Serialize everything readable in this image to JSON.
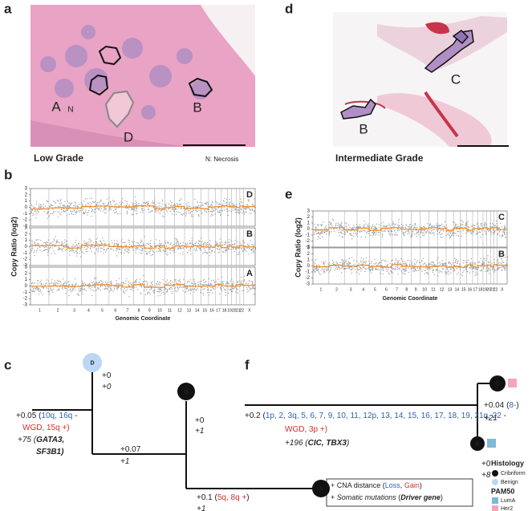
{
  "a": {
    "label": "a",
    "caption": "Low Grade",
    "note": "N: Necrosis",
    "regions": [
      "A",
      "N",
      "B",
      "D"
    ]
  },
  "d": {
    "label": "d",
    "caption": "Intermediate Grade",
    "regions": [
      "C",
      "B"
    ]
  },
  "b": {
    "label": "b",
    "samples": [
      "D",
      "B",
      "A"
    ],
    "yticks": [
      3,
      2,
      1,
      0,
      -1,
      -2,
      -3
    ],
    "ylabel": "Copy Ratio (log2)",
    "xlabel": "Genomic Coordinate",
    "chromosomes": [
      "1",
      "2",
      "3",
      "4",
      "5",
      "6",
      "7",
      "8",
      "9",
      "10",
      "11",
      "12",
      "13",
      "14",
      "15",
      "16",
      "17",
      "18",
      "19",
      "20",
      "21",
      "22",
      "X"
    ]
  },
  "e": {
    "label": "e",
    "samples": [
      "C",
      "B"
    ],
    "yticks": [
      3,
      2,
      1,
      0,
      -1,
      -2,
      -3
    ],
    "ylabel": "Copy Ratio (log2)",
    "xlabel": "Genomic Coordinate",
    "chromosomes": [
      "1",
      "2",
      "3",
      "4",
      "5",
      "6",
      "7",
      "8",
      "9",
      "10",
      "11",
      "12",
      "13",
      "14",
      "15",
      "16",
      "17",
      "18",
      "19",
      "20",
      "21",
      "22",
      "X"
    ]
  },
  "c": {
    "label": "c",
    "nodes": [
      {
        "name": "D",
        "color": "#bcd7f3",
        "text_color": "#333"
      },
      {
        "name": "B",
        "color": "#111",
        "text_color": "#fff"
      },
      {
        "name": "A",
        "color": "#111",
        "text_color": "#fff"
      }
    ],
    "annotations": [
      [
        [
          {
            "text": "+0"
          }
        ],
        [
          {
            "text": "+0",
            "style": "italic"
          }
        ]
      ],
      [
        [
          {
            "text": "+0.05 ("
          },
          {
            "text": "10q, 16q",
            "color": "#2f5fb3"
          },
          {
            "text": " -"
          }
        ],
        [
          {
            "text": "WGD, 15q +)",
            "color": "#d0312d"
          }
        ],
        [
          {
            "text": "+75 (",
            "style": "italic"
          },
          {
            "text": "GATA3,",
            "style": "italic",
            "weight": "bold"
          }
        ],
        [
          {
            "text": "SF3B1)",
            "style": "italic",
            "weight": "bold"
          }
        ]
      ],
      [
        [
          {
            "text": "+0"
          }
        ],
        [
          {
            "text": "+1",
            "style": "italic"
          }
        ]
      ],
      [
        [
          {
            "text": "+0.07"
          }
        ],
        [
          {
            "text": "+1",
            "style": "italic"
          }
        ]
      ],
      [
        [
          {
            "text": "+0.1 ("
          },
          {
            "text": "5q, 8q +",
            "color": "#d0312d"
          },
          {
            "text": ")"
          }
        ],
        [
          {
            "text": "+1",
            "style": "italic"
          }
        ]
      ]
    ]
  },
  "f": {
    "label": "f",
    "nodes": [
      {
        "name": "C",
        "color": "#111",
        "text_color": "#fff",
        "subtype_color": "#f4a6b6"
      },
      {
        "name": "B",
        "color": "#111",
        "text_color": "#fff",
        "subtype_color": "#7db9d9"
      }
    ],
    "annotations": [
      [
        [
          {
            "text": "+0.2 ("
          },
          {
            "text": "1p, 2, 3q, 5, 6, 7, 9, 10, 11, 12p, 13, 14, 15, 16, 17, 18, 19, 21q, 22",
            "color": "#2f5fb3"
          },
          {
            "text": " -"
          }
        ],
        [
          {
            "text": "WGD, 3p +)",
            "color": "#d0312d"
          }
        ],
        [
          {
            "text": "+196 (",
            "style": "italic"
          },
          {
            "text": "CIC, TBX3",
            "style": "italic",
            "weight": "bold"
          },
          {
            "text": ")",
            "style": "italic"
          }
        ]
      ],
      [
        [
          {
            "text": "+0.04 ("
          },
          {
            "text": "8-",
            "color": "#2f5fb3"
          },
          {
            "text": ")"
          }
        ],
        [
          {
            "text": "+21",
            "style": "italic"
          }
        ]
      ],
      [
        [
          {
            "text": "+0"
          }
        ],
        [
          {
            "text": "+8",
            "style": "italic"
          }
        ]
      ]
    ],
    "key": [
      [
        {
          "text": "+ CNA distance ("
        },
        {
          "text": "Loss",
          "color": "#2f5fb3"
        },
        {
          "text": ", "
        },
        {
          "text": "Gain",
          "color": "#d0312d"
        },
        {
          "text": ")"
        }
      ],
      [
        {
          "text": "+ "
        },
        {
          "text": "Somatic mutations",
          "style": "italic"
        },
        {
          "text": " ("
        },
        {
          "text": "Driver gene",
          "style": "italic",
          "weight": "bold"
        },
        {
          "text": ")"
        }
      ]
    ],
    "legend": {
      "histology_title": "Histology",
      "histology": [
        {
          "name": "Cribriform",
          "color": "#111"
        },
        {
          "name": "Benign",
          "color": "#bcd7f3"
        }
      ],
      "pam50_title": "PAM50",
      "pam50": [
        {
          "name": "LumA",
          "color": "#7db9d9"
        },
        {
          "name": "Her2",
          "color": "#f4a6b6"
        }
      ]
    }
  }
}
